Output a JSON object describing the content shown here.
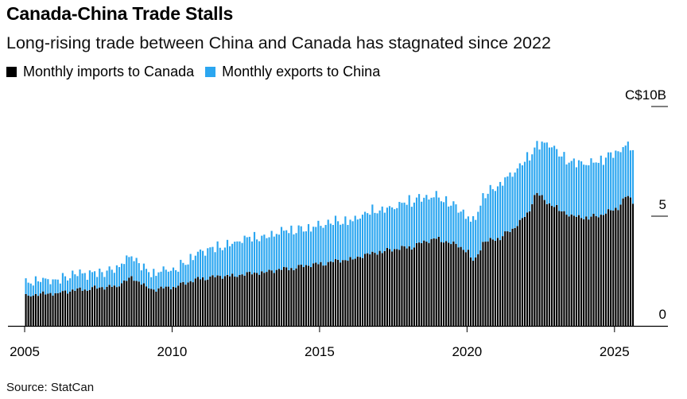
{
  "title": "Canada-China Trade Stalls",
  "subtitle": "Long-rising trade between China and Canada has stagnated since 2022",
  "legend": {
    "imports": "Monthly imports to Canada",
    "exports": "Monthly exports to China"
  },
  "source": "Source: StatCan",
  "colors": {
    "imports": "#000000",
    "exports": "#2ba6f0",
    "axis": "#000000"
  },
  "chart_data": {
    "type": "bar",
    "stacked": true,
    "title": "Canada-China Trade Stalls",
    "subtitle": "Long-rising trade between China and Canada has stagnated since 2022",
    "xlabel": "",
    "ylabel": "",
    "x_start": "2005-01",
    "frequency": "monthly",
    "x_ticks": [
      2005,
      2010,
      2015,
      2020,
      2025
    ],
    "xlim": [
      2005,
      2027
    ],
    "y_ticks": [
      0,
      5,
      10
    ],
    "y_tick_labels": [
      "0",
      "5",
      "C$10B"
    ],
    "ylim": [
      0,
      10
    ],
    "anchors": {
      "imports": [
        [
          2005.0,
          1.4
        ],
        [
          2006.0,
          1.5
        ],
        [
          2007.0,
          1.7
        ],
        [
          2008.0,
          1.8
        ],
        [
          2008.6,
          2.2
        ],
        [
          2009.3,
          1.65
        ],
        [
          2010.0,
          1.8
        ],
        [
          2011.0,
          2.2
        ],
        [
          2012.0,
          2.3
        ],
        [
          2013.0,
          2.45
        ],
        [
          2014.0,
          2.65
        ],
        [
          2015.0,
          2.85
        ],
        [
          2016.0,
          3.05
        ],
        [
          2017.0,
          3.4
        ],
        [
          2018.0,
          3.6
        ],
        [
          2018.9,
          4.0
        ],
        [
          2019.5,
          3.75
        ],
        [
          2020.0,
          3.4
        ],
        [
          2020.2,
          2.9
        ],
        [
          2020.5,
          3.8
        ],
        [
          2021.0,
          4.0
        ],
        [
          2021.5,
          4.4
        ],
        [
          2022.0,
          5.1
        ],
        [
          2022.3,
          6.1
        ],
        [
          2022.7,
          5.6
        ],
        [
          2023.0,
          5.4
        ],
        [
          2023.5,
          5.0
        ],
        [
          2024.0,
          4.95
        ],
        [
          2024.5,
          5.05
        ],
        [
          2025.0,
          5.35
        ],
        [
          2025.4,
          5.95
        ],
        [
          2025.6,
          5.6
        ]
      ],
      "exports": [
        [
          2005.0,
          0.55
        ],
        [
          2006.0,
          0.65
        ],
        [
          2007.0,
          0.7
        ],
        [
          2008.0,
          0.75
        ],
        [
          2008.6,
          1.0
        ],
        [
          2009.3,
          0.7
        ],
        [
          2010.0,
          0.8
        ],
        [
          2011.0,
          1.2
        ],
        [
          2012.0,
          1.5
        ],
        [
          2013.0,
          1.65
        ],
        [
          2014.0,
          1.7
        ],
        [
          2015.0,
          1.75
        ],
        [
          2016.0,
          1.8
        ],
        [
          2017.0,
          1.9
        ],
        [
          2018.0,
          2.05
        ],
        [
          2018.9,
          2.0
        ],
        [
          2019.5,
          1.7
        ],
        [
          2020.0,
          1.6
        ],
        [
          2020.2,
          1.9
        ],
        [
          2020.5,
          2.1
        ],
        [
          2021.0,
          2.35
        ],
        [
          2021.5,
          2.6
        ],
        [
          2022.0,
          2.55
        ],
        [
          2022.3,
          2.05
        ],
        [
          2022.7,
          2.75
        ],
        [
          2023.0,
          2.65
        ],
        [
          2023.5,
          2.4
        ],
        [
          2024.0,
          2.45
        ],
        [
          2024.5,
          2.55
        ],
        [
          2025.0,
          2.55
        ],
        [
          2025.4,
          2.25
        ],
        [
          2025.6,
          2.45
        ]
      ]
    },
    "series": [
      {
        "name": "Monthly imports to Canada",
        "values": []
      },
      {
        "name": "Monthly exports to China",
        "values": []
      }
    ],
    "grid": false,
    "legend_position": "top-left"
  }
}
